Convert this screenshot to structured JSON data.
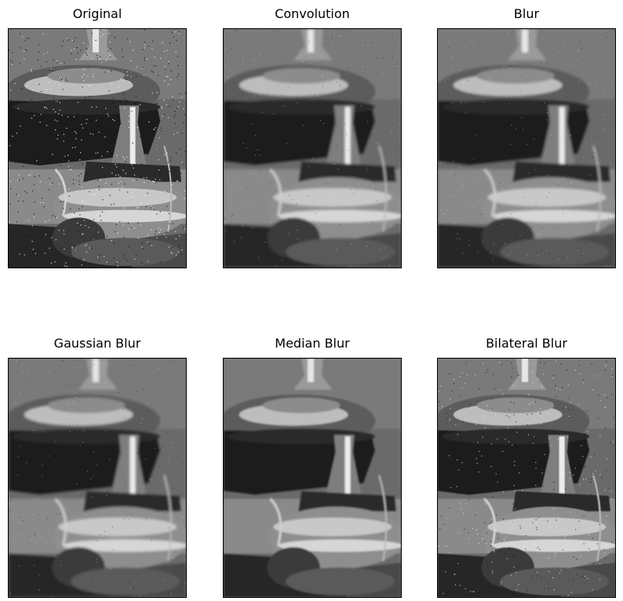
{
  "panels": [
    {
      "title": "Original",
      "filter": "noise"
    },
    {
      "title": "Convolution",
      "filter": "smooth-noise"
    },
    {
      "title": "Blur",
      "filter": "smooth-noise"
    },
    {
      "title": "Gaussian Blur",
      "filter": "smooth-noise"
    },
    {
      "title": "Median Blur",
      "filter": "clean"
    },
    {
      "title": "Bilateral Blur",
      "filter": "noise-soft"
    }
  ],
  "colors": {
    "frame": "#000000",
    "background": "#ffffff"
  }
}
